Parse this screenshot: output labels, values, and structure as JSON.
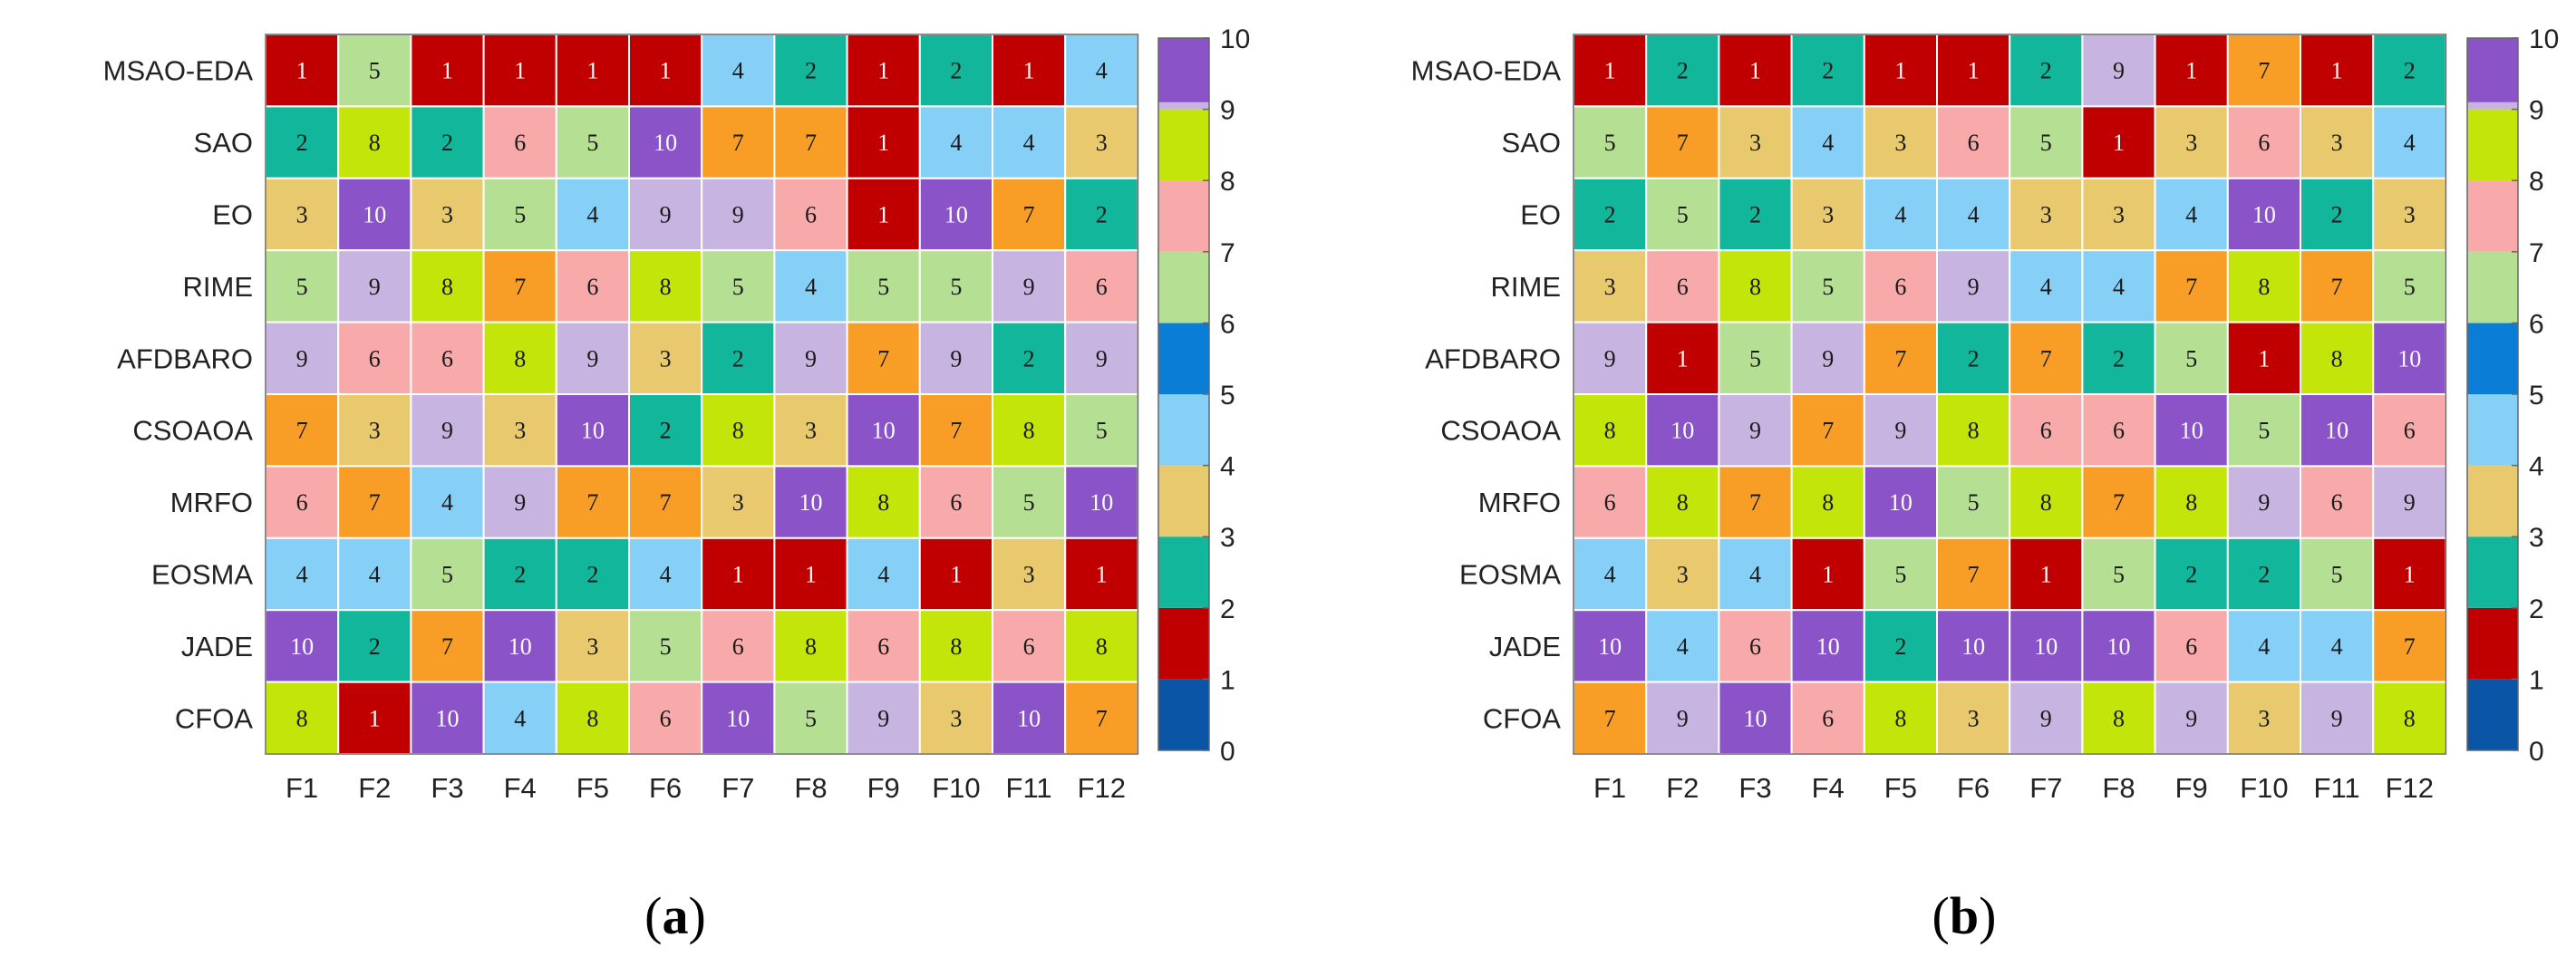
{
  "colors": {
    "level_0_1": "#0a55a6",
    "level_1_2": "#c00000",
    "level_2_3": "#12b69a",
    "level_3_4": "#e8c96d",
    "level_4_5": "#86d0f8",
    "level_5_6": "#0a7ed6",
    "level_6_7": "#b5df92",
    "level_7_8": "#f8aaaa",
    "level_8_9": "#f89d25",
    "level_9_10": "#c3e50a",
    "level_10": "#8b53c8",
    "level_above": "#c8b4e0",
    "grid_line": "#ffffff",
    "axis": "#666666"
  },
  "chart_data": [
    {
      "type": "heatmap",
      "panel": "a",
      "panel_label_open": "(",
      "panel_label_letter": "a",
      "panel_label_close": ")",
      "columns": [
        "F1",
        "F2",
        "F3",
        "F4",
        "F5",
        "F6",
        "F7",
        "F8",
        "F9",
        "F10",
        "F11",
        "F12"
      ],
      "rows": [
        "MSAO-EDA",
        "SAO",
        "EO",
        "RIME",
        "AFDBARO",
        "CSOAOA",
        "MRFO",
        "EOSMA",
        "JADE",
        "CFOA"
      ],
      "values": [
        [
          1,
          5,
          1,
          1,
          1,
          1,
          4,
          2,
          1,
          2,
          1,
          4
        ],
        [
          2,
          8,
          2,
          6,
          5,
          10,
          7,
          7,
          1,
          4,
          4,
          3
        ],
        [
          3,
          10,
          3,
          5,
          4,
          9,
          9,
          6,
          1,
          10,
          7,
          2
        ],
        [
          5,
          9,
          8,
          7,
          6,
          8,
          5,
          4,
          5,
          5,
          9,
          6
        ],
        [
          9,
          6,
          6,
          8,
          9,
          3,
          2,
          9,
          7,
          9,
          2,
          9
        ],
        [
          7,
          3,
          9,
          3,
          10,
          2,
          8,
          3,
          10,
          7,
          8,
          5
        ],
        [
          6,
          7,
          4,
          9,
          7,
          7,
          3,
          10,
          8,
          6,
          5,
          10
        ],
        [
          4,
          4,
          5,
          2,
          2,
          4,
          1,
          1,
          4,
          1,
          3,
          1
        ],
        [
          10,
          2,
          7,
          10,
          3,
          5,
          6,
          8,
          6,
          8,
          6,
          8
        ],
        [
          8,
          1,
          10,
          4,
          8,
          6,
          10,
          5,
          9,
          3,
          10,
          7
        ]
      ],
      "colorbar": {
        "min": 0,
        "max": 10,
        "ticks": [
          "0",
          "1",
          "2",
          "3",
          "4",
          "5",
          "6",
          "7",
          "8",
          "9",
          "10"
        ]
      }
    },
    {
      "type": "heatmap",
      "panel": "b",
      "panel_label_open": "(",
      "panel_label_letter": "b",
      "panel_label_close": ")",
      "columns": [
        "F1",
        "F2",
        "F3",
        "F4",
        "F5",
        "F6",
        "F7",
        "F8",
        "F9",
        "F10",
        "F11",
        "F12"
      ],
      "rows": [
        "MSAO-EDA",
        "SAO",
        "EO",
        "RIME",
        "AFDBARO",
        "CSOAOA",
        "MRFO",
        "EOSMA",
        "JADE",
        "CFOA"
      ],
      "values": [
        [
          1,
          2,
          1,
          2,
          1,
          1,
          2,
          9,
          1,
          7,
          1,
          2
        ],
        [
          5,
          7,
          3,
          4,
          3,
          6,
          5,
          1,
          3,
          6,
          3,
          4
        ],
        [
          2,
          5,
          2,
          3,
          4,
          4,
          3,
          3,
          4,
          10,
          2,
          3
        ],
        [
          3,
          6,
          8,
          5,
          6,
          9,
          4,
          4,
          7,
          8,
          7,
          5
        ],
        [
          9,
          1,
          5,
          9,
          7,
          2,
          7,
          2,
          5,
          1,
          8,
          10
        ],
        [
          8,
          10,
          9,
          7,
          9,
          8,
          6,
          6,
          10,
          5,
          10,
          6
        ],
        [
          6,
          8,
          7,
          8,
          10,
          5,
          8,
          7,
          8,
          9,
          6,
          9
        ],
        [
          4,
          3,
          4,
          1,
          5,
          7,
          1,
          5,
          2,
          2,
          5,
          1
        ],
        [
          10,
          4,
          6,
          10,
          2,
          10,
          10,
          10,
          6,
          4,
          4,
          7
        ],
        [
          7,
          9,
          10,
          6,
          8,
          3,
          9,
          8,
          9,
          3,
          9,
          8
        ]
      ],
      "colorbar": {
        "min": 0,
        "max": 10,
        "ticks": [
          "0",
          "1",
          "2",
          "3",
          "4",
          "5",
          "6",
          "7",
          "8",
          "9",
          "10"
        ]
      }
    }
  ]
}
